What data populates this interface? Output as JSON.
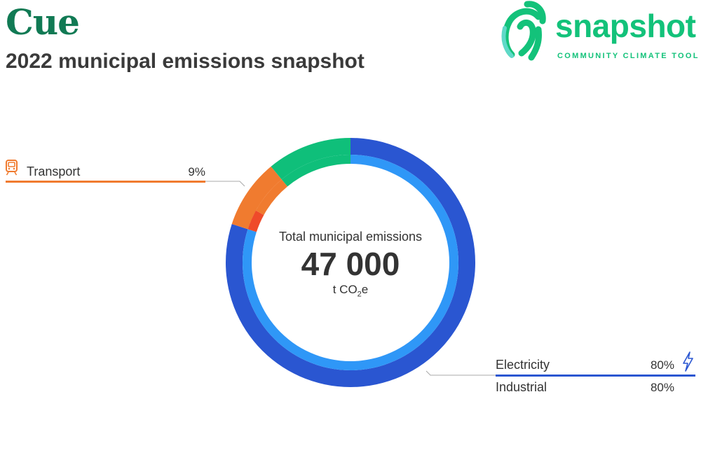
{
  "header": {
    "place_name": "Cue",
    "subtitle": "2022 municipal emissions snapshot"
  },
  "logo": {
    "word": "snapshot",
    "tagline": "COMMUNITY CLIMATE TOOL",
    "color": "#13c27a"
  },
  "center": {
    "label": "Total municipal emissions",
    "value": "47 000",
    "unit_prefix": "t CO",
    "unit_sub": "2",
    "unit_suffix": "e"
  },
  "legend": {
    "transport": {
      "label": "Transport",
      "value": "9%",
      "icon": "train-icon",
      "color": "#f07b2f"
    },
    "electricity": {
      "label": "Electricity",
      "value": "80%",
      "icon": "lightning-icon",
      "color": "#2a56d1"
    },
    "industrial": {
      "label": "Industrial",
      "value": "80%"
    }
  },
  "chart_data": {
    "type": "donut",
    "total": 47000,
    "unit": "t CO2e",
    "outer_ring": [
      {
        "category": "Electricity",
        "value": 80,
        "color": "#2a56d1"
      },
      {
        "category": "Transport",
        "value": 9,
        "color": "#f07b2f"
      },
      {
        "category": "",
        "value": 11,
        "color": "#0fbf7a"
      }
    ],
    "inner_ring": [
      {
        "category": "Industrial",
        "value": 80,
        "color": "#2f97f7"
      },
      {
        "category": "",
        "value": 3,
        "color": "#ef4a2a"
      },
      {
        "category": "",
        "value": 6,
        "color": "#f07b2f"
      },
      {
        "category": "",
        "value": 11,
        "color": "#0fbf7a"
      }
    ]
  }
}
